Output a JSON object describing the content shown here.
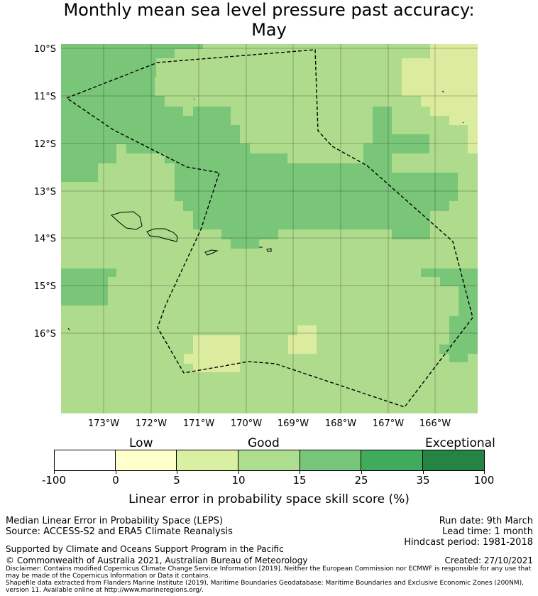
{
  "title": {
    "line1": "Monthly mean sea level pressure past accuracy:",
    "line2": "May"
  },
  "map": {
    "lat_labels": [
      "10°S",
      "11°S",
      "12°S",
      "13°S",
      "14°S",
      "15°S",
      "16°S"
    ],
    "lon_labels": [
      "173°W",
      "172°W",
      "171°W",
      "170°W",
      "169°W",
      "168°W",
      "167°W",
      "166°W"
    ],
    "gridlines": true,
    "category_colors": {
      "low": "#dcec9f",
      "good": "#aedc8c",
      "better": "#79c679",
      "exceptional_dark": "#41ab5d"
    },
    "boundary_style": "dashed black"
  },
  "legend": {
    "low": "Low",
    "good": "Good",
    "exceptional": "Exceptional",
    "ticks": [
      "-100",
      "0",
      "5",
      "10",
      "15",
      "25",
      "35",
      "100"
    ],
    "colors": [
      "#ffffff",
      "#ffffcc",
      "#d9f0a3",
      "#addd8e",
      "#78c679",
      "#41ab5d",
      "#238443"
    ],
    "caption": "Linear error in probability space skill score (%)"
  },
  "footer": {
    "method": "Median Linear Error in Probability Space (LEPS)",
    "source": "Source: ACCESS-S2 and ERA5 Climate Reanalysis",
    "run_date": "Run date: 9th March",
    "lead_time": "Lead time: 1 month",
    "hindcast": "Hindcast period: 1981-2018",
    "support": "Supported by Climate and Oceans Support Program in the Pacific",
    "copyright": "© Commonwealth of Australia 2021, Australian Bureau of Meteorology",
    "created": "Created: 27/10/2021",
    "disclaimer": "Disclaimer: Contains modified Copernicus Climate Change Service Information [2019]. Neither the European Commission nor ECMWF is responsible for any use that may be made of the Copernicus Information or Data it contains.",
    "shapefile": "Shapefile data extracted from Flanders Marine Institute (2019), Maritime Boundaries Geodatabase: Maritime Boundaries and Exclusive Economic Zones (200NM), version 11. Available online at http://www.marineregions.org/."
  }
}
